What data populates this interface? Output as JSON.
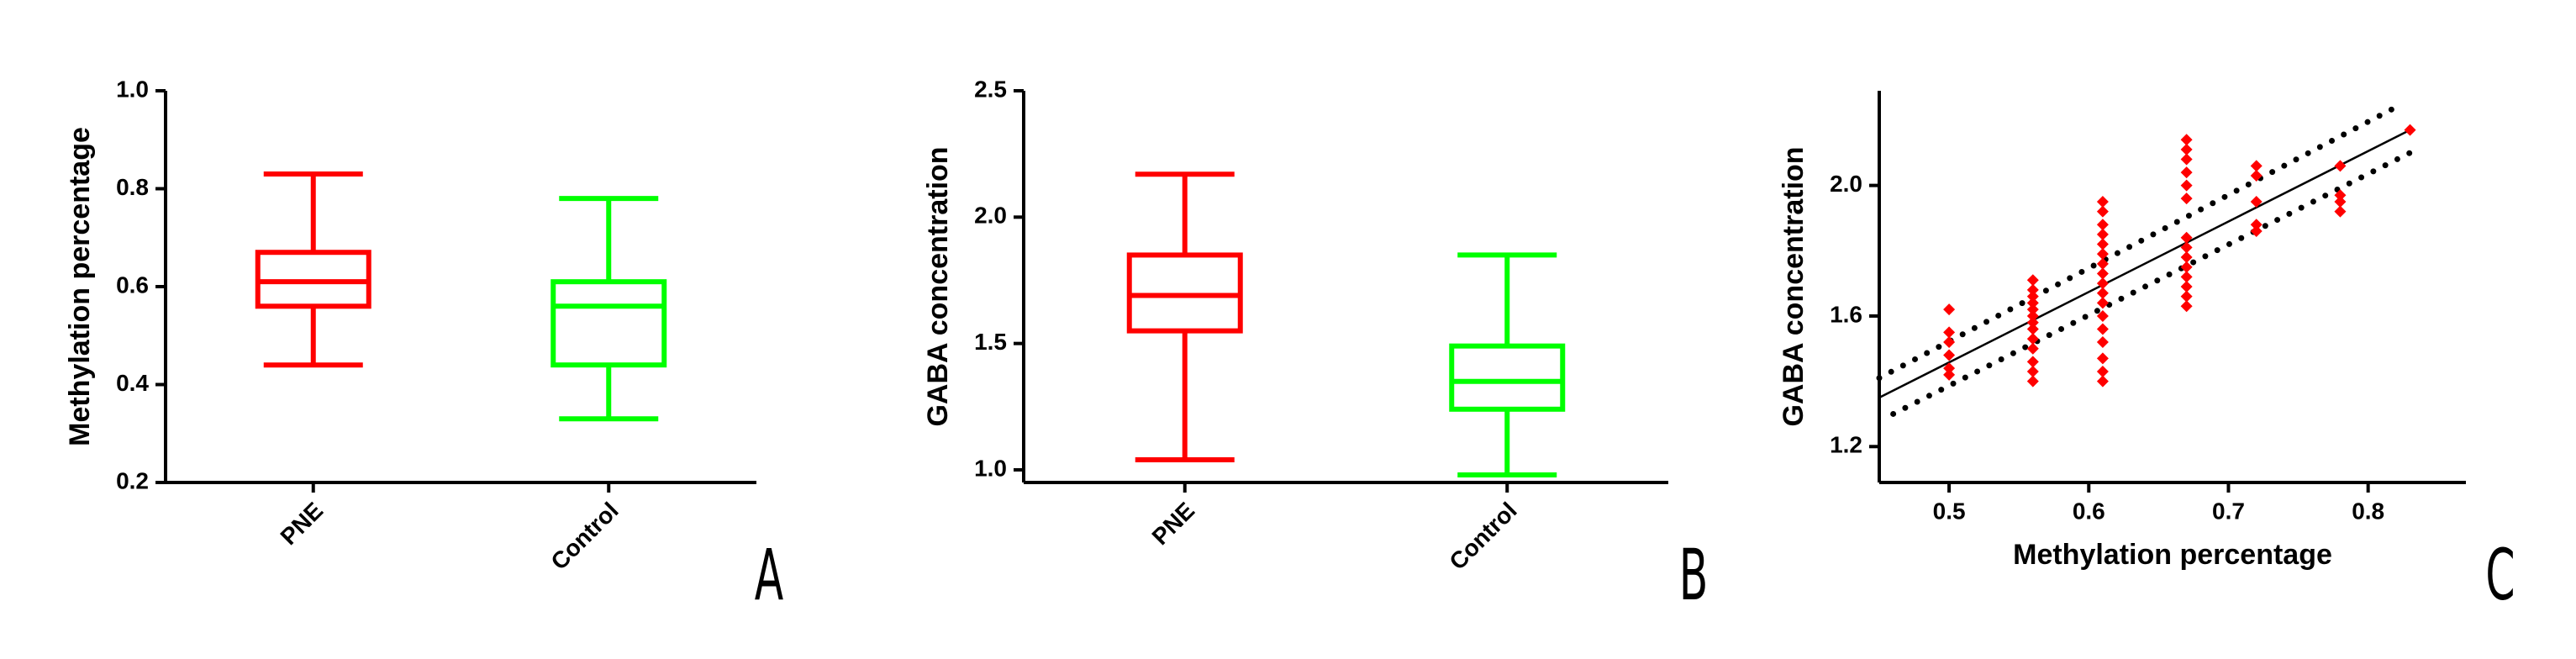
{
  "chart_data": [
    {
      "type": "box",
      "y_label": "Methylation percentage",
      "panel_label": "A",
      "ylim": [
        0.2,
        1.0
      ],
      "yticks": [
        0.2,
        0.4,
        0.6,
        0.8,
        {
          "value": 1,
          "label": "1.0"
        }
      ],
      "boxes": [
        {
          "name": "PNE",
          "color": "#ff0000",
          "whislo": 0.44,
          "q1": 0.56,
          "med": 0.61,
          "q3": 0.67,
          "whishi": 0.83
        },
        {
          "name": "Control",
          "color": "#00ff00",
          "whislo": 0.33,
          "q1": 0.44,
          "med": 0.56,
          "q3": 0.61,
          "whishi": 0.78
        }
      ]
    },
    {
      "type": "box",
      "y_label": "GABA concentration",
      "panel_label": "B",
      "ylim": [
        0.95,
        2.5
      ],
      "yticks": [
        {
          "value": 1,
          "label": "1.0"
        },
        1.5,
        {
          "value": 2,
          "label": "2.0"
        },
        2.5
      ],
      "boxes": [
        {
          "name": "PNE",
          "color": "#ff0000",
          "whislo": 1.04,
          "q1": 1.55,
          "med": 1.69,
          "q3": 1.85,
          "whishi": 2.17
        },
        {
          "name": "Control",
          "color": "#00ff00",
          "whislo": 0.98,
          "q1": 1.24,
          "med": 1.35,
          "q3": 1.49,
          "whishi": 1.85
        }
      ]
    },
    {
      "type": "scatter",
      "x_label": "Methylation percentage",
      "y_label": "GABA concentration",
      "panel_label": "C",
      "xlim": [
        0.45,
        0.87
      ],
      "xticks": [
        0.5,
        0.6,
        0.7,
        0.8
      ],
      "ylim": [
        1.09,
        2.29
      ],
      "yticks": [
        1.2,
        1.6,
        {
          "value": 2,
          "label": "2.0"
        }
      ],
      "color": "#ff0000",
      "x": [
        0.5,
        0.5,
        0.5,
        0.5,
        0.5,
        0.5,
        0.56,
        0.56,
        0.56,
        0.56,
        0.56,
        0.56,
        0.56,
        0.56,
        0.56,
        0.56,
        0.56,
        0.56,
        0.56,
        0.61,
        0.61,
        0.61,
        0.61,
        0.61,
        0.61,
        0.61,
        0.61,
        0.61,
        0.61,
        0.61,
        0.61,
        0.61,
        0.61,
        0.61,
        0.61,
        0.61,
        0.67,
        0.67,
        0.67,
        0.67,
        0.67,
        0.67,
        0.67,
        0.67,
        0.67,
        0.67,
        0.67,
        0.67,
        0.67,
        0.67,
        0.72,
        0.72,
        0.72,
        0.72,
        0.72,
        0.78,
        0.78,
        0.78,
        0.78,
        0.83
      ],
      "values": [
        1.62,
        1.55,
        1.52,
        1.48,
        1.44,
        1.42,
        1.71,
        1.68,
        1.66,
        1.64,
        1.62,
        1.6,
        1.58,
        1.56,
        1.53,
        1.5,
        1.46,
        1.43,
        1.4,
        1.95,
        1.92,
        1.88,
        1.85,
        1.82,
        1.79,
        1.76,
        1.73,
        1.7,
        1.67,
        1.64,
        1.6,
        1.56,
        1.52,
        1.47,
        1.43,
        1.4,
        2.14,
        2.11,
        2.08,
        2.04,
        2.0,
        1.96,
        1.84,
        1.81,
        1.78,
        1.75,
        1.72,
        1.69,
        1.66,
        1.63,
        2.06,
        2.03,
        1.95,
        1.88,
        1.86,
        2.06,
        1.97,
        1.95,
        1.92,
        2.17
      ],
      "lines": [
        {
          "style": "solid",
          "color": "#000000",
          "x": [
            0.45,
            0.83
          ],
          "values": [
            1.35,
            2.17
          ]
        },
        {
          "style": "dotted",
          "color": "#000000",
          "x": [
            0.45,
            0.82
          ],
          "values": [
            1.41,
            2.24
          ]
        },
        {
          "style": "dotted",
          "color": "#000000",
          "x": [
            0.46,
            0.83
          ],
          "values": [
            1.3,
            2.1
          ]
        }
      ]
    }
  ]
}
